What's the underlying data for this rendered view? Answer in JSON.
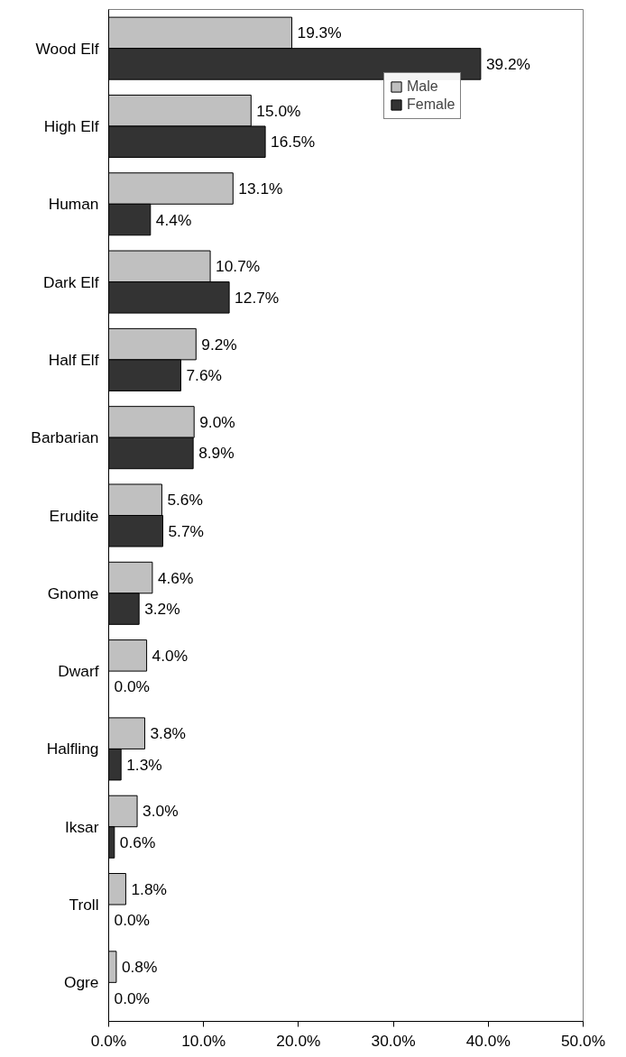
{
  "chart_data": {
    "type": "bar",
    "orientation": "horizontal",
    "categories": [
      "Wood Elf",
      "High Elf",
      "Human",
      "Dark Elf",
      "Half Elf",
      "Barbarian",
      "Erudite",
      "Gnome",
      "Dwarf",
      "Halfling",
      "Iksar",
      "Troll",
      "Ogre"
    ],
    "series": [
      {
        "name": "Male",
        "color": "#c0c0c0",
        "values": [
          19.3,
          15.0,
          13.1,
          10.7,
          9.2,
          9.0,
          5.6,
          4.6,
          4.0,
          3.8,
          3.0,
          1.8,
          0.8
        ],
        "value_labels": [
          "19.3%",
          "15.0%",
          "13.1%",
          "10.7%",
          "9.2%",
          "9.0%",
          "5.6%",
          "4.6%",
          "4.0%",
          "3.8%",
          "3.0%",
          "1.8%",
          "0.8%"
        ]
      },
      {
        "name": "Female",
        "color": "#333333",
        "values": [
          39.2,
          16.5,
          4.4,
          12.7,
          7.6,
          8.9,
          5.7,
          3.2,
          0.0,
          1.3,
          0.6,
          0.0,
          0.0
        ],
        "value_labels": [
          "39.2%",
          "16.5%",
          "4.4%",
          "12.7%",
          "7.6%",
          "8.9%",
          "5.7%",
          "3.2%",
          "0.0%",
          "1.3%",
          "0.6%",
          "0.0%",
          "0.0%"
        ]
      }
    ],
    "xlim": [
      0,
      50
    ],
    "xticks": [
      {
        "value": 0,
        "label": "0.0%"
      },
      {
        "value": 10,
        "label": "10.0%"
      },
      {
        "value": 20,
        "label": "20.0%"
      },
      {
        "value": 30,
        "label": "30.0%"
      },
      {
        "value": 40,
        "label": "40.0%"
      },
      {
        "value": 50,
        "label": "50.0%"
      }
    ],
    "grid": false,
    "legend": "top right"
  }
}
